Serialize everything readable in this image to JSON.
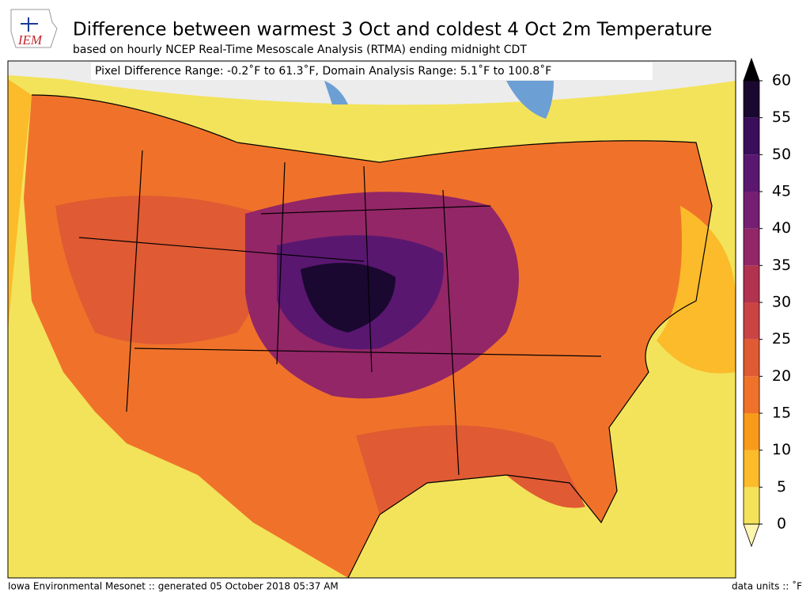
{
  "header": {
    "logo": "IEM",
    "title": "Difference between warmest 3 Oct and coldest 4 Oct 2m Temperature",
    "subtitle": "based on hourly NCEP Real-Time Mesoscale Analysis (RTMA) ending midnight CDT"
  },
  "map": {
    "annotation": "Pixel Difference Range: -0.2˚F to 61.3˚F, Domain Analysis Range: 5.1˚F to 100.8˚F"
  },
  "colorbar": {
    "lim": [
      0,
      60
    ],
    "ticks": [
      0,
      5,
      10,
      15,
      20,
      25,
      30,
      35,
      40,
      45,
      50,
      55,
      60
    ],
    "colors": [
      "#f3e35a",
      "#fbbb2a",
      "#f99b1a",
      "#f0722a",
      "#e05a33",
      "#cb4443",
      "#b2334f",
      "#932667",
      "#751e72",
      "#591770",
      "#3a0e5b",
      "#1a0830"
    ],
    "over_color": "#000004",
    "under_color": "#fcf6b0"
  },
  "footer": {
    "left": "Iowa Environmental Mesonet :: generated 05 October 2018 05:37 AM",
    "right": "data units :: ˚F"
  }
}
